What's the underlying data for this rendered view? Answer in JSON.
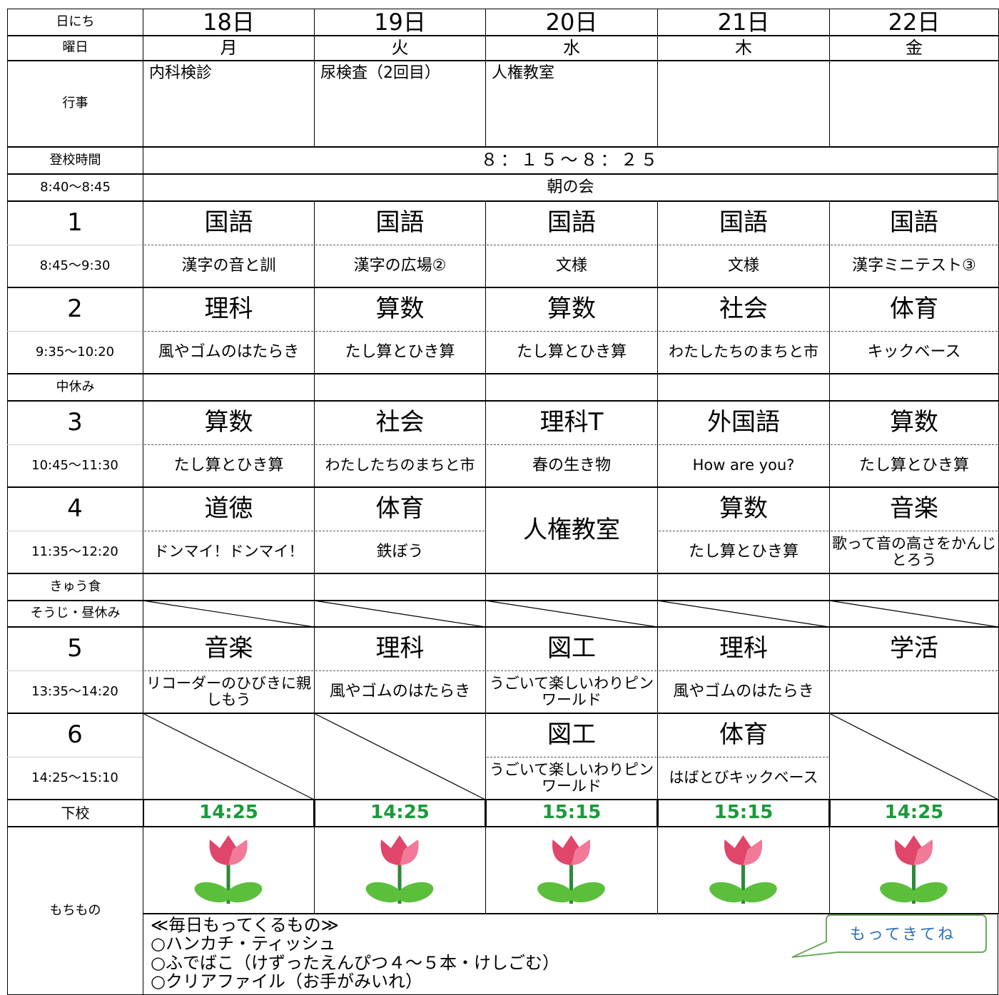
{
  "header": {
    "label": "日にち",
    "days": [
      "18日",
      "19日",
      "20日",
      "21日",
      "22日"
    ]
  },
  "weekday": {
    "label": "曜日",
    "days": [
      "月",
      "火",
      "水",
      "木",
      "金"
    ]
  },
  "events": {
    "label": "行事",
    "days": [
      "内科検診",
      "尿検査（2回目）",
      "人権教室",
      null,
      null
    ]
  },
  "arrival": {
    "label": "登校時間",
    "time": "８：１５～８：２５"
  },
  "morning": {
    "label": "8:40～8:45",
    "text": "朝の会"
  },
  "periods": [
    {
      "number": "1",
      "time": "8:45～9:30",
      "classes": [
        {
          "subject": "国語",
          "detail": "漢字の音と訓"
        },
        {
          "subject": "国語",
          "detail": "漢字の広場②"
        },
        {
          "subject": "国語",
          "detail": "文様"
        },
        {
          "subject": "国語",
          "detail": "文様"
        },
        {
          "subject": "国語",
          "detail": "漢字ミニテスト③"
        }
      ]
    },
    {
      "number": "2",
      "time": "9:35～10:20",
      "classes": [
        {
          "subject": "理科",
          "detail": "風やゴムのはたらき"
        },
        {
          "subject": "算数",
          "detail": "たし算とひき算"
        },
        {
          "subject": "算数",
          "detail": "たし算とひき算"
        },
        {
          "subject": "社会",
          "detail": "わたしたちのまちと市"
        },
        {
          "subject": "体育",
          "detail": "キックベース"
        }
      ]
    },
    {
      "break": "中休み"
    },
    {
      "number": "3",
      "time": "10:45～11:30",
      "classes": [
        {
          "subject": "算数",
          "detail": "たし算とひき算"
        },
        {
          "subject": "社会",
          "detail": "わたしたちのまちと市"
        },
        {
          "subject": "理科T",
          "detail": "春の生き物"
        },
        {
          "subject": "外国語",
          "detail": "How are you?"
        },
        {
          "subject": "算数",
          "detail": "たし算とひき算"
        }
      ]
    },
    {
      "number": "4",
      "time": "11:35～12:20",
      "classes": [
        {
          "subject": "道徳",
          "detail": "ドンマイ！ドンマイ！"
        },
        {
          "subject": "体育",
          "detail": "鉄ぼう"
        },
        {
          "subject": "人権教室",
          "merged": true
        },
        {
          "subject": "算数",
          "detail": "たし算とひき算"
        },
        {
          "subject": "音楽",
          "detail": "歌って音の高さをかんじとろう"
        }
      ]
    },
    {
      "break": "きゅう食"
    },
    {
      "break": "そうじ・昼休み",
      "crossed": true
    },
    {
      "number": "5",
      "time": "13:35～14:20",
      "classes": [
        {
          "subject": "音楽",
          "detail": "リコーダーのひびきに親しもう"
        },
        {
          "subject": "理科",
          "detail": "風やゴムのはたらき"
        },
        {
          "subject": "図工",
          "detail": "うごいて楽しいわりピンワールド"
        },
        {
          "subject": "理科",
          "detail": "風やゴムのはたらき"
        },
        {
          "subject": "学活"
        }
      ]
    },
    {
      "number": "6",
      "time": "14:25～15:10",
      "classes": [
        null,
        null,
        {
          "subject": "図工",
          "detail": "うごいて楽しいわりピンワールド"
        },
        {
          "subject": "体育",
          "detail": "はばとびキックベース"
        },
        null
      ]
    }
  ],
  "dismissal": {
    "label": "下校",
    "times": [
      "14:25",
      "14:25",
      "15:15",
      "15:15",
      "14:25"
    ]
  },
  "belongings": {
    "label": "もちもの",
    "heading": "≪毎日もってくるもの≫",
    "items": [
      "○ハンカチ・ティッシュ",
      "○ふでばこ（けずったえんぴつ４～５本・けしごむ）",
      "○クリアファイル（お手がみいれ）"
    ],
    "callout": "もってきてね"
  }
}
